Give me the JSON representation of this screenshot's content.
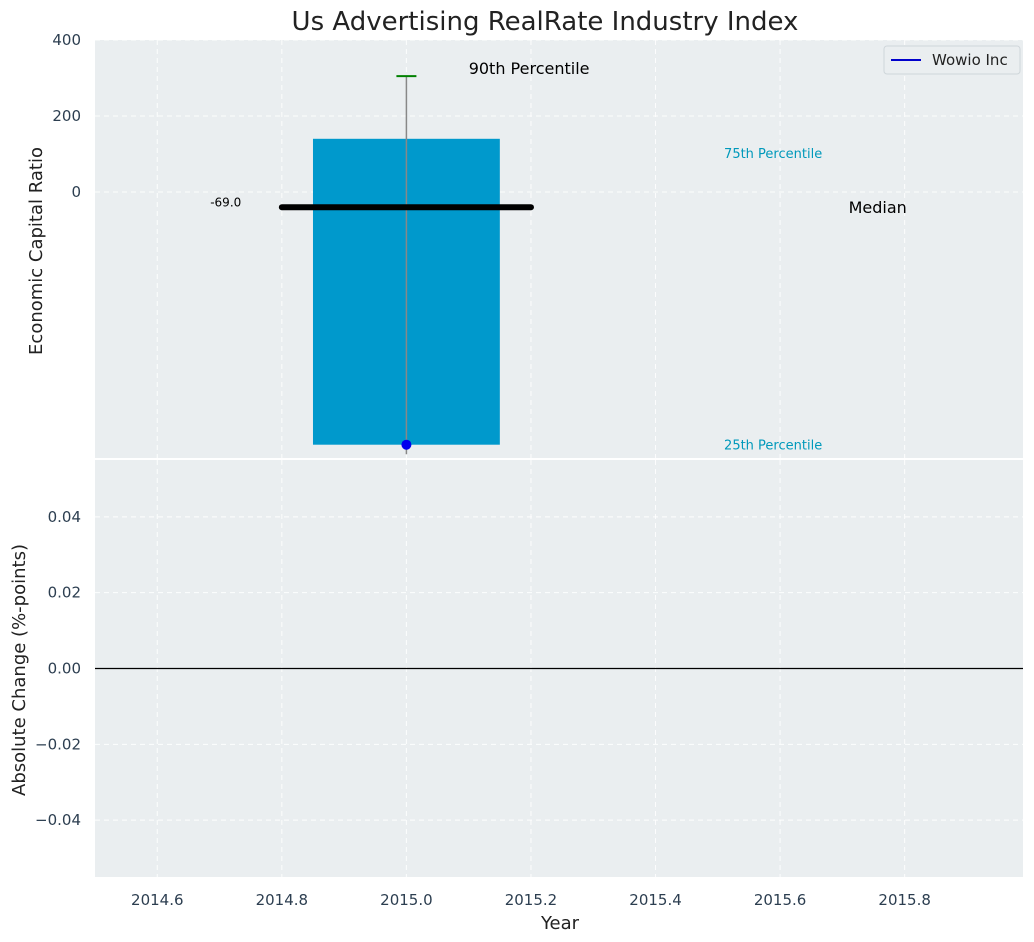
{
  "chart_data": [
    {
      "type": "bar",
      "title": "Us Advertising RealRate Industry Index",
      "ylabel": "Economic Capital Ratio",
      "xlim": [
        2014.5,
        2015.99
      ],
      "ylim": [
        -700,
        400
      ],
      "yticks": [
        0,
        200,
        400
      ],
      "grid": true,
      "legend": {
        "placement": "top-right",
        "entries": [
          {
            "name": "Wowio Inc",
            "color": "#0000cc"
          }
        ]
      },
      "box": {
        "x": 2015.0,
        "width": 0.3,
        "p25": -665,
        "p75": 140,
        "color": "#0099cc"
      },
      "whisker": {
        "x": 2015.0,
        "low": -690,
        "p90": 305,
        "color": "#888888",
        "cap_color": "#008000"
      },
      "median": {
        "value": -40,
        "x_start": 2014.8,
        "x_end": 2015.2,
        "color": "#000000"
      },
      "company_point": {
        "x": 2015.0,
        "y": -665,
        "color": "#0000ee"
      },
      "annotations": [
        {
          "text": "90th Percentile",
          "x": 2015.1,
          "y": 325,
          "color": "#000000",
          "size": 16
        },
        {
          "text": "75th Percentile",
          "x": 2015.51,
          "y": 102,
          "color": "#0099bb",
          "size": 13
        },
        {
          "text": "Median",
          "x": 2015.71,
          "y": -40,
          "color": "#000000",
          "size": 16
        },
        {
          "text": "25th Percentile",
          "x": 2015.51,
          "y": -665,
          "color": "#0099bb",
          "size": 13
        },
        {
          "text": "-69.0",
          "x": 2014.685,
          "y": -27,
          "color": "#000000",
          "size": 12
        }
      ]
    },
    {
      "type": "line",
      "ylabel": "Absolute Change (%-points)",
      "xlabel": "Year",
      "xlim": [
        2014.5,
        2015.99
      ],
      "ylim": [
        -0.055,
        0.055
      ],
      "yticks": [
        -0.04,
        -0.02,
        0.0,
        0.02,
        0.04
      ],
      "yticklabels": [
        "−0.04",
        "−0.02",
        "0.00",
        "0.02",
        "0.04"
      ],
      "xticks": [
        2014.6,
        2014.8,
        2015.0,
        2015.2,
        2015.4,
        2015.6,
        2015.8
      ],
      "xticklabels": [
        "2014.6",
        "2014.8",
        "2015.0",
        "2015.2",
        "2015.4",
        "2015.6",
        "2015.8"
      ],
      "zero_line": 0.0,
      "grid": true
    }
  ],
  "colors": {
    "panel_bg": "#eaeef0",
    "grid": "#ffffff"
  }
}
